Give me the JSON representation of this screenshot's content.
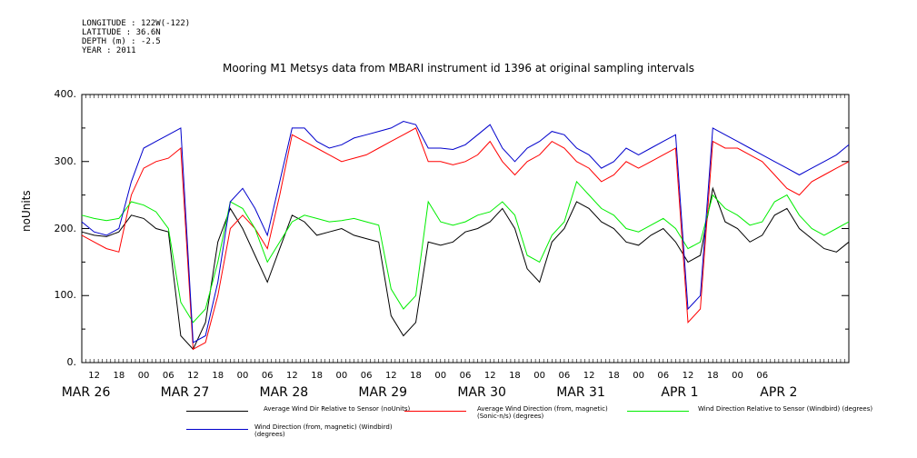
{
  "header": {
    "longitude": "LONGITUDE : 122W(-122)",
    "latitude": "LATITUDE : 36.6N",
    "depth": "DEPTH (m) : -2.5",
    "year": "YEAR : 2011"
  },
  "chart_data": {
    "type": "line",
    "title": "Mooring M1 Metsys data from MBARI instrument id 1396 at original sampling intervals",
    "ylabel": "noUnits",
    "ylim": [
      0,
      400
    ],
    "yticks": [
      "0.",
      "100.",
      "200.",
      "300.",
      "400."
    ],
    "xlim_hours": [
      0,
      186
    ],
    "hour_ticks": [
      "12",
      "18",
      "00",
      "06",
      "12",
      "18",
      "00",
      "06",
      "12",
      "18",
      "00",
      "06",
      "12",
      "18",
      "00",
      "06",
      "12",
      "18",
      "00",
      "06",
      "12",
      "18",
      "00",
      "06",
      "12",
      "18",
      "00",
      "06"
    ],
    "day_labels": [
      "MAR 26",
      "MAR 27",
      "MAR 28",
      "MAR 29",
      "MAR 30",
      "MAR 31",
      "APR  1",
      "APR  2"
    ],
    "x_hours": [
      0,
      3,
      6,
      9,
      12,
      15,
      18,
      21,
      24,
      27,
      30,
      33,
      36,
      39,
      42,
      45,
      48,
      51,
      54,
      57,
      60,
      63,
      66,
      69,
      72,
      75,
      78,
      81,
      84,
      87,
      90,
      93,
      96,
      99,
      102,
      105,
      108,
      111,
      114,
      117,
      120,
      123,
      126,
      129,
      132,
      135,
      138,
      141,
      144,
      147,
      150,
      153,
      156,
      159,
      162,
      165,
      168,
      171,
      174,
      177,
      180,
      183,
      186
    ],
    "series": [
      {
        "name": "Average Wind Dir Relative to Sensor (noUnits)",
        "color": "#000000",
        "values": [
          195,
          190,
          188,
          195,
          220,
          215,
          200,
          195,
          40,
          20,
          60,
          180,
          230,
          200,
          160,
          120,
          170,
          220,
          210,
          190,
          195,
          200,
          190,
          185,
          180,
          70,
          40,
          60,
          180,
          175,
          180,
          195,
          200,
          210,
          230,
          200,
          140,
          120,
          180,
          200,
          240,
          230,
          210,
          200,
          180,
          175,
          190,
          200,
          180,
          150,
          160,
          260,
          210,
          200,
          180,
          190,
          220,
          230,
          200,
          185,
          170,
          165,
          180
        ]
      },
      {
        "name": "Average Wind Direction (from, magnetic) (Sonic-n/s) (degrees)",
        "color": "#ff0000",
        "values": [
          190,
          180,
          170,
          165,
          250,
          290,
          300,
          305,
          320,
          20,
          30,
          100,
          200,
          220,
          200,
          170,
          250,
          340,
          330,
          320,
          310,
          300,
          305,
          310,
          320,
          330,
          340,
          350,
          300,
          300,
          295,
          300,
          310,
          330,
          300,
          280,
          300,
          310,
          330,
          320,
          300,
          290,
          270,
          280,
          300,
          290,
          300,
          310,
          320,
          60,
          80,
          330,
          320,
          320,
          310,
          300,
          280,
          260,
          250,
          270,
          280,
          290,
          300
        ]
      },
      {
        "name": "Wind Direction Relative to Sensor (Windbird) (degrees)",
        "color": "#00ee00",
        "values": [
          220,
          215,
          212,
          215,
          240,
          235,
          225,
          200,
          90,
          60,
          80,
          150,
          240,
          230,
          200,
          150,
          180,
          210,
          220,
          215,
          210,
          212,
          215,
          210,
          205,
          110,
          80,
          100,
          240,
          210,
          205,
          210,
          220,
          225,
          240,
          220,
          160,
          150,
          190,
          210,
          270,
          250,
          230,
          220,
          200,
          195,
          205,
          215,
          200,
          170,
          180,
          250,
          230,
          220,
          205,
          210,
          240,
          250,
          220,
          200,
          190,
          200,
          210
        ]
      },
      {
        "name": "Wind Direction (from, magnetic) (Windbird) (degrees)",
        "color": "#0000cc",
        "values": [
          210,
          195,
          190,
          200,
          270,
          320,
          330,
          340,
          350,
          30,
          40,
          120,
          240,
          260,
          230,
          190,
          270,
          350,
          350,
          330,
          320,
          325,
          335,
          340,
          345,
          350,
          360,
          355,
          320,
          320,
          318,
          325,
          340,
          355,
          320,
          300,
          320,
          330,
          345,
          340,
          320,
          310,
          290,
          300,
          320,
          310,
          320,
          330,
          340,
          80,
          100,
          350,
          340,
          330,
          320,
          310,
          300,
          290,
          280,
          290,
          300,
          310,
          325
        ]
      }
    ]
  }
}
